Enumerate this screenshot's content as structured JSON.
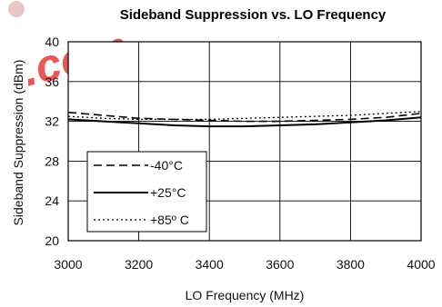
{
  "chart_data": {
    "type": "line",
    "title": "Sideband Suppression vs. LO Frequency",
    "xlabel": "LO Frequency (MHz)",
    "ylabel": "Sideband Suppression (dBm)",
    "xlim": [
      3000,
      4000
    ],
    "ylim": [
      20,
      40
    ],
    "xticks": [
      "3000",
      "3200",
      "3400",
      "3600",
      "3800",
      "4000"
    ],
    "yticks": [
      "20",
      "24",
      "28",
      "32",
      "36",
      "40"
    ],
    "grid": true,
    "legend_position": "bottom-left",
    "series": [
      {
        "name": "-40°C",
        "style": "dashed",
        "x": [
          3000,
          3100,
          3200,
          3300,
          3400,
          3500,
          3600,
          3700,
          3800,
          3900,
          4000
        ],
        "y": [
          32.9,
          32.6,
          32.3,
          32.2,
          32.1,
          32.0,
          32.0,
          32.1,
          32.2,
          32.4,
          32.8
        ]
      },
      {
        "name": "+25°C",
        "style": "solid",
        "x": [
          3000,
          3100,
          3200,
          3300,
          3400,
          3500,
          3600,
          3700,
          3800,
          3900,
          4000
        ],
        "y": [
          32.2,
          32.0,
          31.8,
          31.6,
          31.5,
          31.5,
          31.6,
          31.7,
          31.9,
          32.1,
          32.4
        ]
      },
      {
        "name": "+85º C",
        "style": "dotted",
        "x": [
          3000,
          3100,
          3200,
          3300,
          3400,
          3500,
          3600,
          3700,
          3800,
          3900,
          4000
        ],
        "y": [
          32.5,
          32.3,
          32.2,
          32.2,
          32.2,
          32.3,
          32.4,
          32.5,
          32.6,
          32.8,
          33.0
        ]
      }
    ]
  },
  "watermark": {
    "text": ".com",
    "color": "#e63a3a"
  }
}
